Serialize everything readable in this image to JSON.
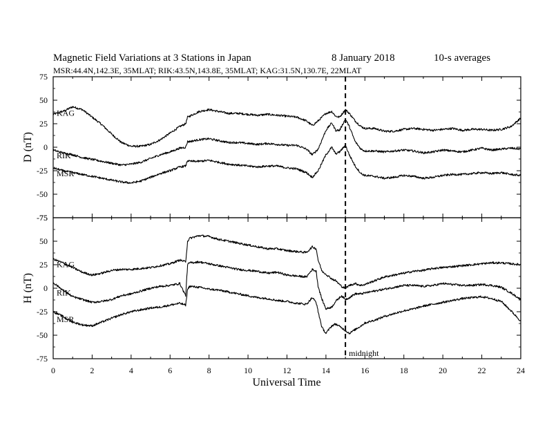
{
  "title": {
    "main": "Magnetic Field Variations at 3 Stations in Japan",
    "date": "8   January  2018",
    "cadence": "10-s averages"
  },
  "subtitle": "MSR:44.4N,142.3E, 35MLAT;  RIK:43.5N,143.8E, 35MLAT;  KAG:31.5N,130.7E, 22MLAT",
  "annotation": {
    "text": "midnight",
    "x": 15
  },
  "xlabel": "Universal Time",
  "colors": {
    "line": "#000000",
    "background": "#ffffff"
  },
  "chart_data": [
    {
      "type": "line",
      "panel": "D",
      "ylabel": "D (nT)",
      "xlim": [
        0,
        24
      ],
      "ylim": [
        -75,
        75
      ],
      "xticks": [
        "0",
        "2",
        "4",
        "6",
        "8",
        "10",
        "12",
        "14",
        "16",
        "18",
        "20",
        "22",
        "24"
      ],
      "yticks": [
        "75",
        "50",
        "25",
        "0",
        "-25",
        "-50",
        "-75"
      ],
      "x": [
        0,
        0.5,
        1,
        1.5,
        2,
        2.5,
        3,
        3.5,
        4,
        4.5,
        5,
        5.5,
        6,
        6.5,
        6.8,
        6.9,
        7,
        7.5,
        8,
        8.5,
        9,
        9.5,
        10,
        10.5,
        11,
        11.5,
        12,
        12.5,
        13,
        13.3,
        13.6,
        14,
        14.3,
        14.5,
        14.7,
        15,
        15.2,
        15.5,
        15.8,
        16,
        16.5,
        17,
        17.5,
        18,
        18.5,
        19,
        19.5,
        20,
        20.5,
        21,
        21.5,
        22,
        22.5,
        23,
        23.5,
        24
      ],
      "series": [
        {
          "name": "KAG",
          "values": [
            35,
            38,
            43,
            40,
            32,
            24,
            14,
            5,
            1,
            1,
            3,
            8,
            15,
            22,
            25,
            32,
            33,
            38,
            40,
            38,
            36,
            36,
            35,
            34,
            35,
            34,
            33,
            32,
            28,
            23,
            28,
            36,
            38,
            33,
            32,
            40,
            36,
            28,
            22,
            20,
            20,
            17,
            17,
            19,
            20,
            19,
            18,
            19,
            20,
            18,
            19,
            19,
            18,
            19,
            22,
            31
          ]
        },
        {
          "name": "RIK",
          "values": [
            -3,
            -6,
            -8,
            -11,
            -13,
            -15,
            -17,
            -19,
            -18,
            -16,
            -12,
            -8,
            -5,
            -1,
            0,
            6,
            6,
            8,
            9,
            7,
            5,
            5,
            4,
            3,
            4,
            3,
            2,
            2,
            -2,
            -8,
            -2,
            18,
            26,
            18,
            18,
            30,
            22,
            6,
            -2,
            -4,
            -4,
            -5,
            -4,
            -3,
            -4,
            -6,
            -5,
            -3,
            -4,
            -5,
            -3,
            -1,
            -3,
            -2,
            -1,
            -2
          ]
        },
        {
          "name": "MSR",
          "values": [
            -22,
            -25,
            -27,
            -29,
            -31,
            -33,
            -35,
            -37,
            -38,
            -36,
            -32,
            -28,
            -25,
            -21,
            -20,
            -14,
            -15,
            -15,
            -14,
            -16,
            -18,
            -19,
            -20,
            -21,
            -20,
            -20,
            -22,
            -23,
            -27,
            -32,
            -25,
            -8,
            0,
            -7,
            -5,
            2,
            -8,
            -20,
            -28,
            -30,
            -31,
            -33,
            -32,
            -30,
            -31,
            -33,
            -32,
            -30,
            -29,
            -29,
            -28,
            -27,
            -28,
            -27,
            -29,
            -30
          ]
        }
      ]
    },
    {
      "type": "line",
      "panel": "H",
      "ylabel": "H (nT)",
      "xlim": [
        0,
        24
      ],
      "ylim": [
        -75,
        75
      ],
      "xticks": [
        "0",
        "2",
        "4",
        "6",
        "8",
        "10",
        "12",
        "14",
        "16",
        "18",
        "20",
        "22",
        "24"
      ],
      "yticks": [
        "75",
        "50",
        "25",
        "0",
        "-25",
        "-50",
        "-75"
      ],
      "x": [
        0,
        0.5,
        1,
        1.5,
        2,
        2.5,
        3,
        3.5,
        4,
        4.5,
        5,
        5.5,
        6,
        6.5,
        6.8,
        6.9,
        7,
        7.5,
        8,
        8.5,
        9,
        9.5,
        10,
        10.5,
        11,
        11.5,
        12,
        12.5,
        13,
        13.3,
        13.5,
        13.6,
        13.8,
        14,
        14.3,
        14.5,
        14.8,
        15,
        15.2,
        15.5,
        15.8,
        16,
        16.5,
        17,
        17.5,
        18,
        18.5,
        19,
        19.5,
        20,
        20.5,
        21,
        21.5,
        22,
        22.5,
        23,
        23.5,
        24
      ],
      "series": [
        {
          "name": "KAG",
          "values": [
            31,
            27,
            22,
            17,
            14,
            16,
            19,
            20,
            20,
            21,
            22,
            24,
            26,
            30,
            28,
            50,
            53,
            56,
            55,
            52,
            50,
            48,
            46,
            44,
            42,
            42,
            40,
            39,
            38,
            44,
            42,
            30,
            18,
            15,
            10,
            8,
            2,
            0,
            3,
            5,
            3,
            4,
            8,
            12,
            14,
            16,
            18,
            19,
            21,
            22,
            23,
            24,
            25,
            26,
            27,
            27,
            26,
            25
          ]
        },
        {
          "name": "RIK",
          "values": [
            6,
            -2,
            -9,
            -12,
            -15,
            -14,
            -12,
            -8,
            -6,
            -3,
            0,
            2,
            3,
            5,
            -8,
            25,
            27,
            28,
            26,
            24,
            22,
            20,
            19,
            18,
            16,
            17,
            14,
            13,
            12,
            20,
            18,
            2,
            -12,
            -22,
            -20,
            -14,
            -8,
            -12,
            -10,
            -6,
            -6,
            -5,
            -3,
            -1,
            1,
            3,
            3,
            2,
            3,
            5,
            4,
            3,
            3,
            4,
            3,
            1,
            -5,
            -12
          ]
        },
        {
          "name": "MSR",
          "values": [
            -25,
            -30,
            -36,
            -39,
            -40,
            -36,
            -32,
            -28,
            -25,
            -23,
            -21,
            -20,
            -18,
            -16,
            -18,
            -1,
            2,
            1,
            -1,
            -2,
            -4,
            -6,
            -8,
            -10,
            -11,
            -13,
            -14,
            -16,
            -17,
            -10,
            -15,
            -25,
            -42,
            -48,
            -40,
            -38,
            -42,
            -45,
            -48,
            -44,
            -40,
            -37,
            -34,
            -30,
            -27,
            -24,
            -22,
            -19,
            -17,
            -15,
            -13,
            -11,
            -10,
            -9,
            -11,
            -14,
            -24,
            -35
          ]
        }
      ]
    }
  ]
}
